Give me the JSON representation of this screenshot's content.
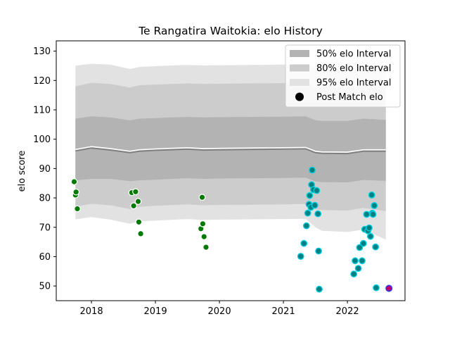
{
  "chart_data": {
    "type": "scatter",
    "title": "Te Rangatira Waitokia: elo History",
    "xlabel": "",
    "ylabel": "elo score",
    "xlim": [
      2017.45,
      2022.9
    ],
    "ylim": [
      45,
      133.5
    ],
    "x_ticks": [
      {
        "value": 2018,
        "label": "2018"
      },
      {
        "value": 2019,
        "label": "2019"
      },
      {
        "value": 2020,
        "label": "2020"
      },
      {
        "value": 2021,
        "label": "2021"
      },
      {
        "value": 2022,
        "label": "2022"
      }
    ],
    "y_ticks": [
      {
        "value": 50,
        "label": "50"
      },
      {
        "value": 60,
        "label": "60"
      },
      {
        "value": 70,
        "label": "70"
      },
      {
        "value": 80,
        "label": "80"
      },
      {
        "value": 90,
        "label": "90"
      },
      {
        "value": 100,
        "label": "100"
      },
      {
        "value": 110,
        "label": "110"
      },
      {
        "value": 120,
        "label": "120"
      },
      {
        "value": 130,
        "label": "130"
      }
    ],
    "legend": {
      "placement": "top-right",
      "entries": [
        {
          "label": "50% elo Interval",
          "color": "#b3b3b3"
        },
        {
          "label": "80% elo Interval",
          "color": "#cccccc"
        },
        {
          "label": "95% elo Interval",
          "color": "#e2e2e2"
        },
        {
          "label": "Post Match elo",
          "color": "#000000"
        }
      ]
    },
    "colors": {
      "band95": "#e2e2e2",
      "band80": "#cccccc",
      "band50": "#b3b3b3",
      "mean_line": "#808080",
      "median_line": "#ffffff",
      "older_points": "#007a00",
      "recent_points_fill": "#008080",
      "recent_points_edge": "#00cfe0",
      "latest_point_fill": "#c00060",
      "latest_point_edge": "#3030ff",
      "point_edge": "#ffffff"
    },
    "bands": {
      "x": [
        2017.75,
        2018.0,
        2018.3,
        2018.6,
        2018.75,
        2019.0,
        2019.5,
        2019.75,
        2020.0,
        2020.5,
        2021.0,
        2021.35,
        2021.5,
        2021.6,
        2022.0,
        2022.25,
        2022.6
      ],
      "mean": [
        96.2,
        97.2,
        96.5,
        95.6,
        96.1,
        96.4,
        96.8,
        96.5,
        96.6,
        96.7,
        96.8,
        96.9,
        95.6,
        95.4,
        95.3,
        96.1,
        96.1
      ],
      "p50_low": [
        86,
        86.5,
        86.5,
        85.7,
        86,
        86.2,
        86.7,
        86.5,
        86.6,
        86.7,
        86.8,
        86.9,
        85.6,
        85.4,
        85.3,
        86.1,
        85.8
      ],
      "p50_high": [
        107,
        107.8,
        107.4,
        106.4,
        107,
        107.2,
        107.6,
        107.4,
        107.5,
        107.6,
        107.7,
        107.8,
        106.5,
        106.2,
        106.2,
        107,
        106.6
      ],
      "p80_low": [
        77,
        78,
        77.5,
        76.2,
        77,
        77.3,
        77.8,
        77.5,
        77.6,
        77.7,
        77.8,
        77.9,
        76.1,
        75.9,
        75.7,
        76.6,
        75.5
      ],
      "p80_high": [
        118,
        119.2,
        118.8,
        117.6,
        118.4,
        118.6,
        119,
        118.8,
        118.9,
        119,
        119.1,
        119.2,
        117.8,
        117.5,
        117.4,
        118.2,
        117.8
      ],
      "p95_low": [
        72.7,
        73.5,
        72.6,
        71.2,
        72,
        72.3,
        72.8,
        72.5,
        72.6,
        72.7,
        72.8,
        72.9,
        70,
        68.8,
        68.4,
        69.2,
        65.8
      ],
      "p95_high": [
        125,
        125.7,
        125.4,
        123.9,
        124.6,
        124.9,
        125.3,
        125.1,
        125.2,
        125.3,
        125.4,
        125.5,
        124.3,
        124,
        123.9,
        124.8,
        124.5
      ]
    },
    "points": [
      {
        "x": 2017.73,
        "y": 85.5,
        "group": "older"
      },
      {
        "x": 2017.75,
        "y": 81.0,
        "group": "older"
      },
      {
        "x": 2017.76,
        "y": 82.0,
        "group": "older"
      },
      {
        "x": 2017.78,
        "y": 76.3,
        "group": "older"
      },
      {
        "x": 2018.63,
        "y": 81.8,
        "group": "older"
      },
      {
        "x": 2018.66,
        "y": 77.3,
        "group": "older"
      },
      {
        "x": 2018.69,
        "y": 82.1,
        "group": "older"
      },
      {
        "x": 2018.73,
        "y": 78.8,
        "group": "older"
      },
      {
        "x": 2018.74,
        "y": 71.8,
        "group": "older"
      },
      {
        "x": 2018.77,
        "y": 67.8,
        "group": "older"
      },
      {
        "x": 2019.73,
        "y": 80.2,
        "group": "older"
      },
      {
        "x": 2019.71,
        "y": 69.5,
        "group": "older"
      },
      {
        "x": 2019.74,
        "y": 71.2,
        "group": "older"
      },
      {
        "x": 2019.76,
        "y": 66.8,
        "group": "older"
      },
      {
        "x": 2019.79,
        "y": 63.2,
        "group": "older"
      },
      {
        "x": 2021.27,
        "y": 60.1,
        "group": "recent"
      },
      {
        "x": 2021.32,
        "y": 64.5,
        "group": "recent"
      },
      {
        "x": 2021.36,
        "y": 70.5,
        "group": "recent"
      },
      {
        "x": 2021.38,
        "y": 74.8,
        "group": "recent"
      },
      {
        "x": 2021.4,
        "y": 77.8,
        "group": "recent"
      },
      {
        "x": 2021.41,
        "y": 80.8,
        "group": "recent"
      },
      {
        "x": 2021.43,
        "y": 76.8,
        "group": "recent"
      },
      {
        "x": 2021.44,
        "y": 84.5,
        "group": "recent"
      },
      {
        "x": 2021.45,
        "y": 89.5,
        "group": "recent"
      },
      {
        "x": 2021.47,
        "y": 82.8,
        "group": "recent"
      },
      {
        "x": 2021.49,
        "y": 77.5,
        "group": "recent"
      },
      {
        "x": 2021.52,
        "y": 82.5,
        "group": "recent"
      },
      {
        "x": 2021.54,
        "y": 74.6,
        "group": "recent"
      },
      {
        "x": 2021.55,
        "y": 61.9,
        "group": "recent"
      },
      {
        "x": 2021.56,
        "y": 48.9,
        "group": "recent"
      },
      {
        "x": 2022.1,
        "y": 54.1,
        "group": "recent"
      },
      {
        "x": 2022.12,
        "y": 58.6,
        "group": "recent"
      },
      {
        "x": 2022.17,
        "y": 56.0,
        "group": "recent"
      },
      {
        "x": 2022.19,
        "y": 63.1,
        "group": "recent"
      },
      {
        "x": 2022.23,
        "y": 58.6,
        "group": "recent"
      },
      {
        "x": 2022.25,
        "y": 64.5,
        "group": "recent"
      },
      {
        "x": 2022.27,
        "y": 69.3,
        "group": "recent"
      },
      {
        "x": 2022.3,
        "y": 74.4,
        "group": "recent"
      },
      {
        "x": 2022.32,
        "y": 68.8,
        "group": "recent"
      },
      {
        "x": 2022.34,
        "y": 69.8,
        "group": "recent"
      },
      {
        "x": 2022.36,
        "y": 66.9,
        "group": "recent"
      },
      {
        "x": 2022.38,
        "y": 81.0,
        "group": "recent"
      },
      {
        "x": 2022.39,
        "y": 74.8,
        "group": "recent"
      },
      {
        "x": 2022.4,
        "y": 74.4,
        "group": "recent"
      },
      {
        "x": 2022.42,
        "y": 77.4,
        "group": "recent"
      },
      {
        "x": 2022.44,
        "y": 63.3,
        "group": "recent"
      },
      {
        "x": 2022.45,
        "y": 49.4,
        "group": "recent"
      },
      {
        "x": 2022.65,
        "y": 49.2,
        "group": "latest"
      }
    ]
  }
}
